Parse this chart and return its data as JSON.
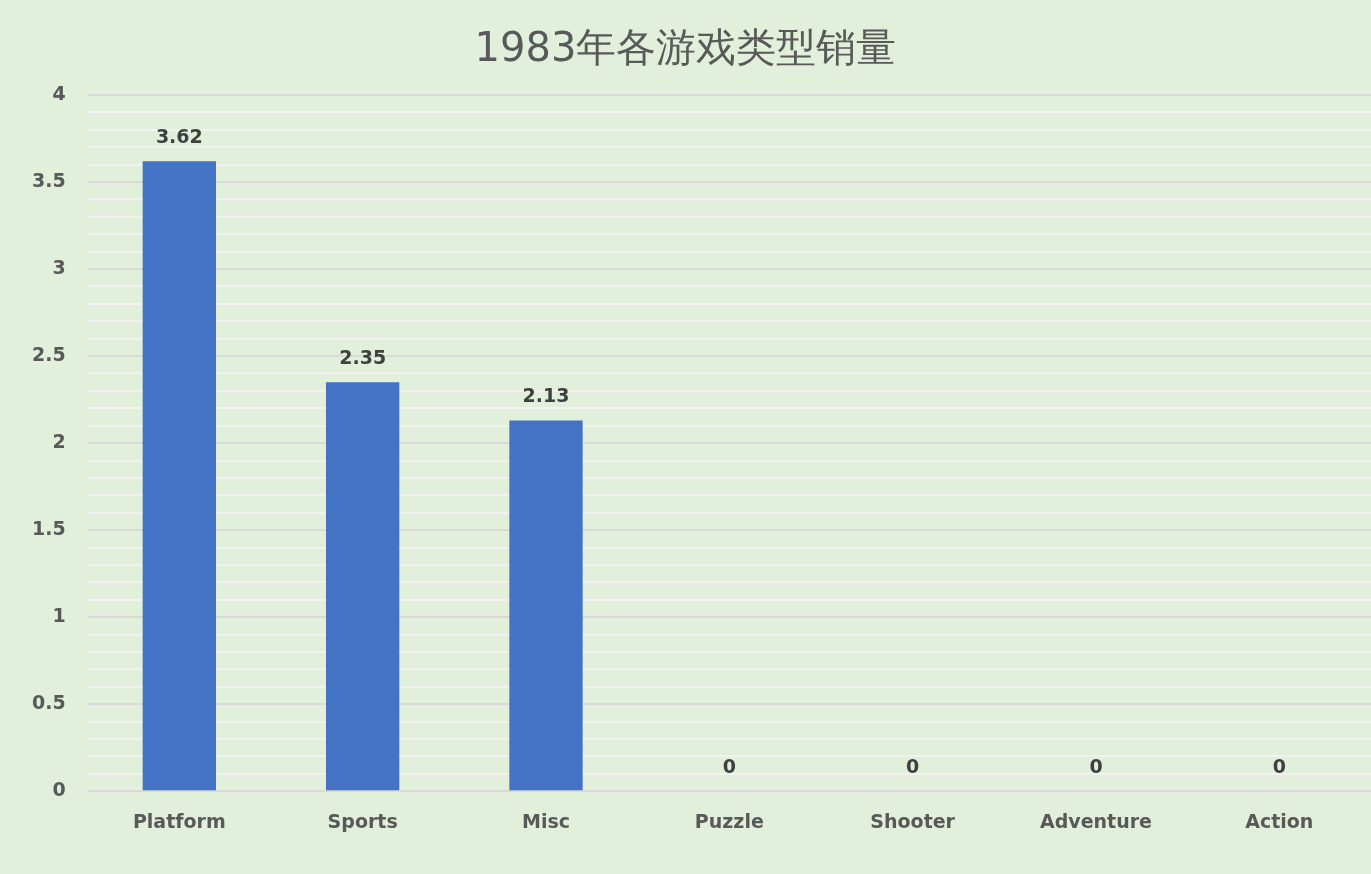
{
  "chart_data": {
    "type": "bar",
    "title": "1983年各游戏类型销量",
    "categories": [
      "Platform",
      "Sports",
      "Misc",
      "Puzzle",
      "Shooter",
      "Adventure",
      "Action"
    ],
    "values": [
      3.62,
      2.35,
      2.13,
      0,
      0,
      0,
      0
    ],
    "color": "#4472c4",
    "ylim": [
      0,
      4
    ],
    "yticks": [
      0,
      {
        "value": 0.1,
        "label": null
      },
      {
        "value": 0.2,
        "label": null
      },
      {
        "value": 0.3,
        "label": null
      },
      {
        "value": 0.4,
        "label": null
      },
      0.5,
      {
        "value": 0.6,
        "label": null
      },
      {
        "value": 0.7,
        "label": null
      },
      {
        "value": 0.8,
        "label": null
      },
      {
        "value": 0.9,
        "label": null
      },
      1,
      {
        "value": 1.1,
        "label": null
      },
      {
        "value": 1.2,
        "label": null
      },
      {
        "value": 1.3,
        "label": null
      },
      {
        "value": 1.4,
        "label": null
      },
      1.5,
      {
        "value": 1.6,
        "label": null
      },
      {
        "value": 1.7,
        "label": null
      },
      {
        "value": 1.8,
        "label": null
      },
      {
        "value": 1.9,
        "label": null
      },
      2,
      {
        "value": 2.1,
        "label": null
      },
      {
        "value": 2.2,
        "label": null
      },
      {
        "value": 2.3,
        "label": null
      },
      {
        "value": 2.4,
        "label": null
      },
      2.5,
      {
        "value": 2.6,
        "label": null
      },
      {
        "value": 2.7,
        "label": null
      },
      {
        "value": 2.8,
        "label": null
      },
      {
        "value": 2.9,
        "label": null
      },
      3,
      {
        "value": 3.1,
        "label": null
      },
      {
        "value": 3.2,
        "label": null
      },
      {
        "value": 3.3,
        "label": null
      },
      {
        "value": 3.4,
        "label": null
      },
      3.5,
      {
        "value": 3.6,
        "label": null
      },
      {
        "value": 3.7,
        "label": null
      },
      {
        "value": 3.8,
        "label": null
      },
      {
        "value": 3.9,
        "label": null
      },
      4
    ],
    "grid": "y",
    "data_labels": true
  }
}
